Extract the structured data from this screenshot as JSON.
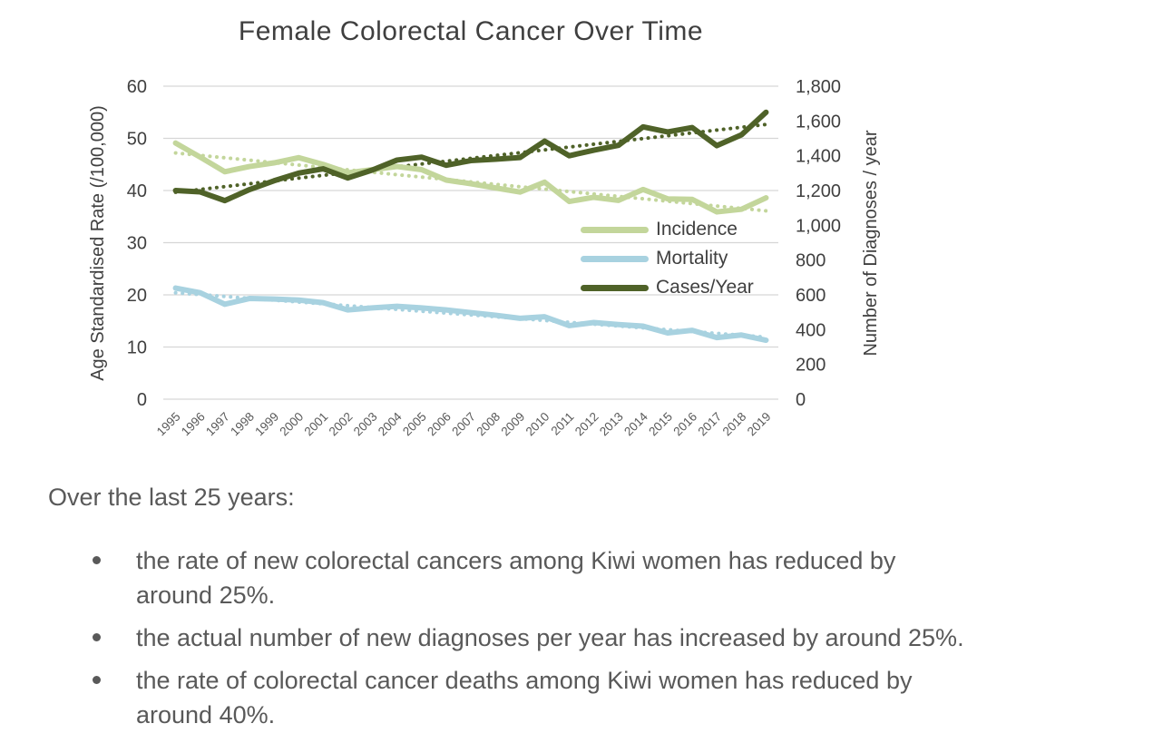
{
  "title": "Female Colorectal Cancer Over Time",
  "chart_data": {
    "type": "line",
    "x": [
      "1995",
      "1996",
      "1997",
      "1998",
      "1999",
      "2000",
      "2001",
      "2002",
      "2003",
      "2004",
      "2005",
      "2006",
      "2007",
      "2008",
      "2009",
      "2010",
      "2011",
      "2012",
      "2013",
      "2014",
      "2015",
      "2016",
      "2017",
      "2018",
      "2019"
    ],
    "y_left": {
      "label": "Age Standardised Rate (/100,000)",
      "min": 0,
      "max": 60,
      "ticks": [
        "0",
        "10",
        "20",
        "30",
        "40",
        "50",
        "60"
      ]
    },
    "y_right": {
      "label": "Number of Diagnoses / year",
      "min": 0,
      "max": 1800,
      "ticks": [
        "0",
        "200",
        "400",
        "600",
        "800",
        "1,000",
        "1,200",
        "1,400",
        "1,600",
        "1,800"
      ]
    },
    "grid": "horizontal",
    "legend_position": "inside right",
    "series": [
      {
        "name": "Incidence",
        "axis": "left",
        "color": "#c3d69b",
        "style": "solid",
        "values": [
          49.1,
          46.4,
          43.6,
          44.6,
          45.3,
          46.3,
          45.0,
          43.4,
          44.0,
          44.6,
          44.0,
          42.0,
          41.3,
          40.5,
          39.7,
          41.6,
          37.9,
          38.7,
          38.1,
          40.2,
          38.4,
          38.3,
          35.9,
          36.4,
          38.6
        ]
      },
      {
        "name": "Mortality",
        "axis": "left",
        "color": "#a8d2e0",
        "style": "solid",
        "values": [
          21.3,
          20.4,
          18.2,
          19.3,
          19.2,
          19.0,
          18.5,
          17.1,
          17.5,
          17.8,
          17.5,
          17.1,
          16.6,
          16.1,
          15.5,
          15.8,
          14.1,
          14.7,
          14.3,
          14.0,
          12.7,
          13.2,
          11.8,
          12.3,
          11.3
        ]
      },
      {
        "name": "Cases/Year",
        "axis": "right",
        "color": "#4f6228",
        "style": "solid",
        "values": [
          1200,
          1192,
          1142,
          1205,
          1256,
          1300,
          1325,
          1272,
          1318,
          1375,
          1392,
          1345,
          1372,
          1380,
          1390,
          1484,
          1400,
          1432,
          1460,
          1566,
          1537,
          1562,
          1458,
          1520,
          1650
        ]
      }
    ],
    "trendlines": [
      {
        "series": "Incidence",
        "axis": "left",
        "color": "#c3d69b",
        "style": "dotted",
        "start": 47.2,
        "end": 36.1
      },
      {
        "series": "Mortality",
        "axis": "left",
        "color": "#a8d2e0",
        "style": "dotted",
        "start": 20.4,
        "end": 11.9
      },
      {
        "series": "Cases/Year",
        "axis": "right",
        "color": "#4f6228",
        "style": "dotted",
        "start": 1190,
        "end": 1580
      }
    ]
  },
  "summary": {
    "intro": "Over the last 25 years:",
    "bullets": [
      "the rate of new colorectal cancers among Kiwi women has reduced by\naround 25%.",
      "the actual number of new diagnoses per year has increased by around 25%.",
      "the rate of colorectal cancer deaths among Kiwi women has reduced by\naround 40%."
    ]
  },
  "colors": {
    "grid": "#d6d6d6",
    "axis_text": "#404040",
    "x_tick_text": "#595959",
    "body_text": "#595959",
    "title_text": "#3f3f3f"
  }
}
